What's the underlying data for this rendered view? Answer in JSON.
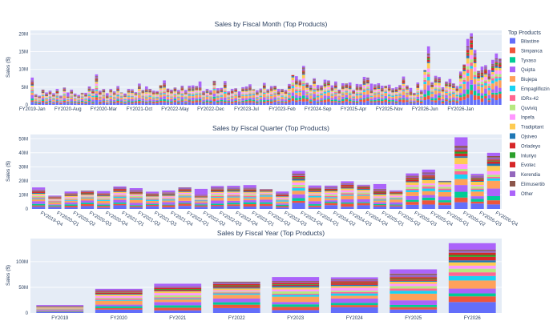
{
  "chart_data": [
    {
      "type": "bar",
      "stacked": true,
      "title": "Sales by Fiscal Month (Top Products)",
      "ylabel": "Sales ($)",
      "ylim": [
        0,
        21000000
      ],
      "yticks": [
        0,
        5000000,
        10000000,
        15000000,
        20000000
      ],
      "ytick_labels": [
        "0",
        "5M",
        "10M",
        "15M",
        "20M"
      ],
      "x_tick_labels": [
        "FY2019-Jan",
        "FY2020-Aug",
        "FY2020-Mar",
        "FY2021-Oct",
        "FY2022-May",
        "FY2022-Dec",
        "FY2023-Jul",
        "FY2023-Feb",
        "FY2024-Sep",
        "FY2025-Apr",
        "FY2025-Nov",
        "FY2026-Jun",
        "FY2026-Jan"
      ],
      "totals": [
        7.7,
        3.0,
        2.6,
        4.3,
        3.5,
        4.0,
        3.3,
        4.5,
        2.6,
        4.9,
        3.5,
        4.3,
        3.2,
        2.8,
        3.4,
        3.4,
        5.2,
        4.5,
        8.6,
        4.0,
        4.5,
        3.3,
        4.5,
        3.8,
        5.3,
        3.5,
        3.2,
        4.5,
        4.4,
        3.6,
        6.0,
        4.2,
        5.2,
        4.5,
        4.0,
        3.9,
        5.5,
        6.9,
        4.6,
        4.3,
        4.9,
        4.2,
        5.4,
        4.2,
        5.4,
        5.5,
        5.3,
        6.6,
        3.9,
        4.5,
        4.1,
        6.8,
        4.7,
        4.8,
        6.7,
        3.8,
        4.5,
        4.7,
        3.8,
        5.0,
        5.2,
        5.8,
        4.4,
        4.1,
        4.6,
        6.2,
        4.4,
        5.3,
        5.4,
        4.5,
        4.5,
        4.2,
        5.9,
        8.4,
        8.1,
        7.1,
        11.0,
        6.2,
        5.6,
        7.5,
        5.6,
        5.5,
        7.1,
        6.9,
        5.5,
        6.6,
        4.3,
        6.1,
        6.0,
        6.3,
        4.2,
        5.9,
        5.8,
        7.9,
        7.7,
        6.0,
        5.8,
        6.1,
        5.4,
        5.4,
        5.7,
        4.7,
        5.0,
        5.6,
        8.0,
        5.5,
        4.8,
        3.4,
        6.3,
        4.2,
        9.8,
        16.5,
        6.4,
        8.2,
        7.9,
        5.0,
        6.6,
        7.3,
        6.1,
        5.3,
        9.4,
        11.4,
        18.6,
        20.2,
        15.5,
        9.6,
        10.8,
        11.2,
        9.9,
        12.7,
        14.5,
        13.1
      ],
      "x_tick_positions": [
        0,
        10,
        20,
        30,
        40,
        50,
        60,
        70,
        80,
        90,
        100,
        110,
        120
      ]
    },
    {
      "type": "bar",
      "stacked": true,
      "title": "Sales by Fiscal Quarter (Top Products)",
      "ylabel": "Sales ($)",
      "ylim": [
        0,
        53000000
      ],
      "yticks": [
        0,
        10000000,
        20000000,
        30000000,
        40000000,
        50000000
      ],
      "ytick_labels": [
        "0",
        "10M",
        "20M",
        "30M",
        "40M",
        "50M"
      ],
      "categories": [
        "FY2019-Q4",
        "FY2020-Q1",
        "FY2020-Q2",
        "FY2020-Q3",
        "FY2020-Q4",
        "FY2021-Q1",
        "FY2021-Q2",
        "FY2021-Q3",
        "FY2021-Q4",
        "FY2022-Q1",
        "FY2022-Q2",
        "FY2022-Q3",
        "FY2022-Q4",
        "FY2023-Q1",
        "FY2023-Q2",
        "FY2023-Q3",
        "FY2023-Q4",
        "FY2024-Q1",
        "FY2024-Q2",
        "FY2024-Q3",
        "FY2024-Q4",
        "FY2025-Q1",
        "FY2025-Q2",
        "FY2025-Q3",
        "FY2025-Q4",
        "FY2026-Q1",
        "FY2026-Q2",
        "FY2026-Q3",
        "FY2026-Q4"
      ],
      "totals": [
        15.3,
        9.5,
        12.4,
        13.0,
        12.7,
        16.0,
        14.8,
        12.3,
        13.1,
        15.4,
        14.3,
        16.3,
        16.5,
        17.0,
        14.1,
        12.4,
        27.0,
        16.7,
        16.6,
        19.7,
        17.2,
        17.7,
        13.2,
        25.3,
        28.0,
        20.0,
        51.0,
        25.0,
        40.0
      ]
    },
    {
      "type": "bar",
      "stacked": true,
      "title": "Sales by Fiscal Year (Top Products)",
      "ylabel": "Sales ($)",
      "ylim": [
        0,
        145000000
      ],
      "yticks": [
        0,
        50000000,
        100000000
      ],
      "ytick_labels": [
        "0",
        "50M",
        "100M"
      ],
      "categories": [
        "FY2019",
        "FY2020",
        "FY2021",
        "FY2022",
        "FY2023",
        "FY2024",
        "FY2025",
        "FY2026"
      ],
      "totals": [
        15.5,
        47.0,
        57.0,
        61.0,
        70.0,
        69.5,
        85.0,
        136.0
      ]
    }
  ],
  "legend": {
    "title": "Top Products",
    "placement": "right",
    "items": [
      {
        "name": "Bilastine",
        "color": "#636efa"
      },
      {
        "name": "Simpanca",
        "color": "#ef553b"
      },
      {
        "name": "Tyvaso",
        "color": "#00cc96"
      },
      {
        "name": "Quipta",
        "color": "#ab63fa"
      },
      {
        "name": "Biujepa",
        "color": "#ffa15a"
      },
      {
        "name": "Empagliflozin",
        "color": "#19d3f3"
      },
      {
        "name": "IDRx-42",
        "color": "#ff6692"
      },
      {
        "name": "Quviviq",
        "color": "#b6e880"
      },
      {
        "name": "Inpefa",
        "color": "#ff97ff"
      },
      {
        "name": "Tradipitant",
        "color": "#fecb52"
      },
      {
        "name": "Ojsiveo",
        "color": "#1f77b4"
      },
      {
        "name": "Orladeyo",
        "color": "#d62728"
      },
      {
        "name": "Inluriyo",
        "color": "#2ca02c"
      },
      {
        "name": "Evotec",
        "color": "#d62728"
      },
      {
        "name": "Kerendia",
        "color": "#9467bd"
      },
      {
        "name": "Elimusertib",
        "color": "#8c564b"
      },
      {
        "name": "Other",
        "color": "#ab63fa"
      }
    ]
  }
}
